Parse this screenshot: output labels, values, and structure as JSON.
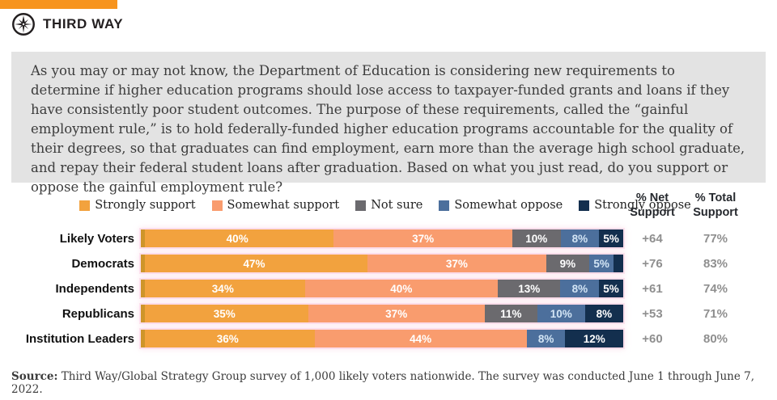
{
  "brand": {
    "name": "THIRD WAY",
    "accent_color": "#F7941E"
  },
  "question": "As you may or may not know, the Department of Education is considering new requirements to determine if higher education programs should lose access to taxpayer-funded grants and loans if they have consistently poor student outcomes. The purpose of these requirements, called the “gainful employment rule,” is to hold federally-funded higher education programs accountable for the quality of their degrees, so that graduates can find employment, earn more than the average high school graduate, and repay their federal student loans after graduation. Based on what you just read, do you support or oppose the gainful employment rule?",
  "chart_data": {
    "type": "bar",
    "orientation": "horizontal",
    "stacked": true,
    "legend_position": "top",
    "legend": [
      {
        "label": "Strongly support",
        "color": "#F2A23E",
        "text_color": "#ffffff"
      },
      {
        "label": "Somewhat support",
        "color": "#F99C6E",
        "text_color": "#ffffff"
      },
      {
        "label": "Not sure",
        "color": "#6B6A6E",
        "text_color": "#ffffff"
      },
      {
        "label": "Somewhat oppose",
        "color": "#4C6F9C",
        "text_color": "#d3e5f5"
      },
      {
        "label": "Strongly oppose",
        "color": "#132F4E",
        "text_color": "#ffffff"
      }
    ],
    "columns": {
      "net": "% Net Support",
      "total": "% Total Support"
    },
    "categories": [
      "Likely Voters",
      "Democrats",
      "Independents",
      "Republicans",
      "Institution Leaders"
    ],
    "rows": [
      {
        "category": "Likely Voters",
        "values": [
          40,
          37,
          10,
          8,
          5
        ],
        "labels": [
          "40%",
          "37%",
          "10%",
          "8%",
          "5%"
        ],
        "net": "+64",
        "total": "77%"
      },
      {
        "category": "Democrats",
        "values": [
          47,
          37,
          9,
          5,
          2
        ],
        "labels": [
          "47%",
          "37%",
          "9%",
          "5%",
          ""
        ],
        "net": "+76",
        "total": "83%"
      },
      {
        "category": "Independents",
        "values": [
          34,
          40,
          13,
          8,
          5
        ],
        "labels": [
          "34%",
          "40%",
          "13%",
          "8%",
          "5%"
        ],
        "net": "+61",
        "total": "74%"
      },
      {
        "category": "Republicans",
        "values": [
          35,
          37,
          11,
          10,
          8
        ],
        "labels": [
          "35%",
          "37%",
          "11%",
          "10%",
          "8%"
        ],
        "net": "+53",
        "total": "71%"
      },
      {
        "category": "Institution Leaders",
        "values": [
          36,
          44,
          0,
          8,
          12
        ],
        "labels": [
          "36%",
          "44%",
          "",
          "8%",
          "12%"
        ],
        "net": "+60",
        "total": "80%"
      }
    ]
  },
  "source": {
    "label": "Source:",
    "text": " Third Way/Global Strategy Group survey of 1,000 likely voters nationwide. The survey was conducted June 1 through June 7, 2022."
  }
}
